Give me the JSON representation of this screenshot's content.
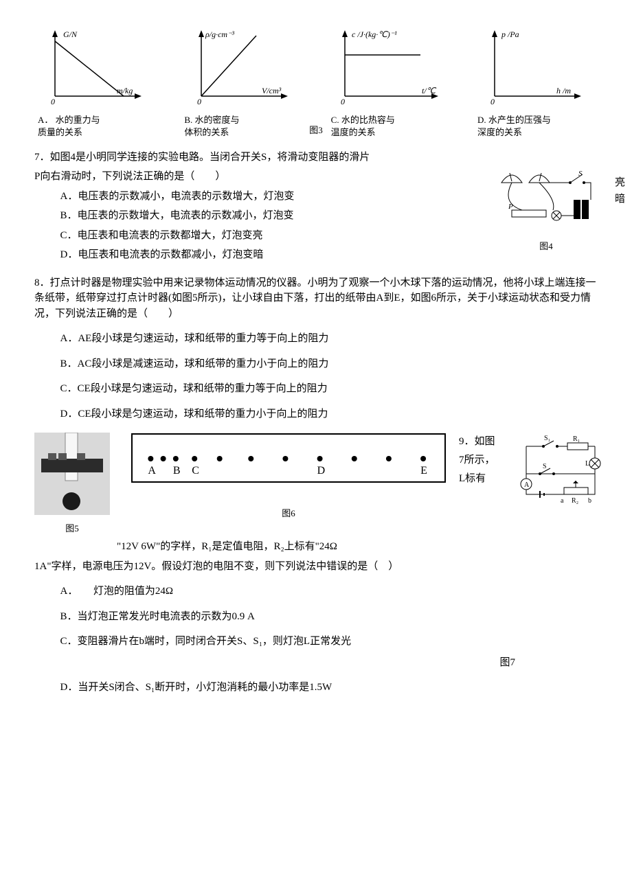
{
  "graphs": {
    "A": {
      "y_label": "G/N",
      "x_label": "m/kg",
      "caption": "A．  水的重力与\n质量的关系",
      "line_color": "#000000"
    },
    "B": {
      "y_label": "ρ/g·cm⁻³",
      "x_label": "V/cm³",
      "caption": "B. 水的密度与\n体积的关系",
      "line_color": "#000000"
    },
    "C": {
      "y_label": "c /J·(kg·℃)⁻¹",
      "x_label": "t/℃",
      "caption": "C. 水的比热容与\n温度的关系",
      "line_color": "#000000"
    },
    "D": {
      "y_label": "p /Pa",
      "x_label": "h /m",
      "caption": "D. 水产生的压强与\n深度的关系",
      "line_color": "#000000"
    },
    "fig3_label": "图3"
  },
  "q7": {
    "stem1": "7．如图4是小明同学连接的实验电路。当闭合开关S，将滑动变阻器的滑片",
    "stem2": "P向右滑动时，下列说法正确的是（　　）",
    "optA": "A．电压表的示数减小，电流表的示数增大，灯泡变",
    "optA_tail": "亮",
    "optB": "B．电压表的示数增大，电流表的示数减小，灯泡变",
    "optB_tail": "暗",
    "optC": "C．电压表和电流表的示数都增大，灯泡变亮",
    "optD": "D．电压表和电流表的示数都减小，灯泡变暗",
    "fig_label": "图4"
  },
  "q8": {
    "stem": "8．打点计时器是物理实验中用来记录物体运动情况的仪器。小明为了观察一个小木球下落的运动情况，他将小球上端连接一条纸带，纸带穿过打点计时器(如图5所示)，让小球自由下落，打出的纸带由A到E，如图6所示，关于小球运动状态和受力情况，下列说法正确的是（　　）",
    "optA": "A．AE段小球是匀速运动，球和纸带的重力等于向上的阻力",
    "optB": "B．AC段小球是减速运动，球和纸带的重力小于向上的阻力",
    "optC": "C．CE段小球是匀速运动，球和纸带的重力等于向上的阻力",
    "optD": "D．CE段小球是匀速运动，球和纸带的重力小于向上的阻力",
    "fig5_label": "图5",
    "fig6_label": "图6",
    "tape": {
      "labels": [
        "A",
        "B",
        "C",
        "D",
        "E"
      ],
      "dot_positions_pct": [
        6,
        10,
        14,
        20,
        28,
        38,
        49,
        60,
        71,
        82,
        93
      ],
      "label_positions_pct": [
        6,
        14,
        20,
        60,
        93
      ],
      "border_color": "#000000",
      "background": "#ffffff"
    }
  },
  "q9": {
    "stem_part1": "9．如图",
    "stem_part2": "7所示，",
    "stem_part3": "L标有",
    "stem_line2": "\"12V  6W\"的字样，R₁是定值电阻，R₂上标有\"24Ω",
    "stem_line3": "1A\"字样，电源电压为12V。假设灯泡的电阻不变，则下列说法中错误的是（　）",
    "optA": "A．　　灯泡的阻值为24Ω",
    "optB": "B．当灯泡正常发光时电流表的示数为0.9 A",
    "optC": "C．变阻器滑片在b端时，同时闭合开关S、S₁，则灯泡L正常发光",
    "optD": "D．当开关S闭合、S₁断开时，小灯泡消耗的最小功率是1.5W",
    "fig_label": "图7"
  }
}
